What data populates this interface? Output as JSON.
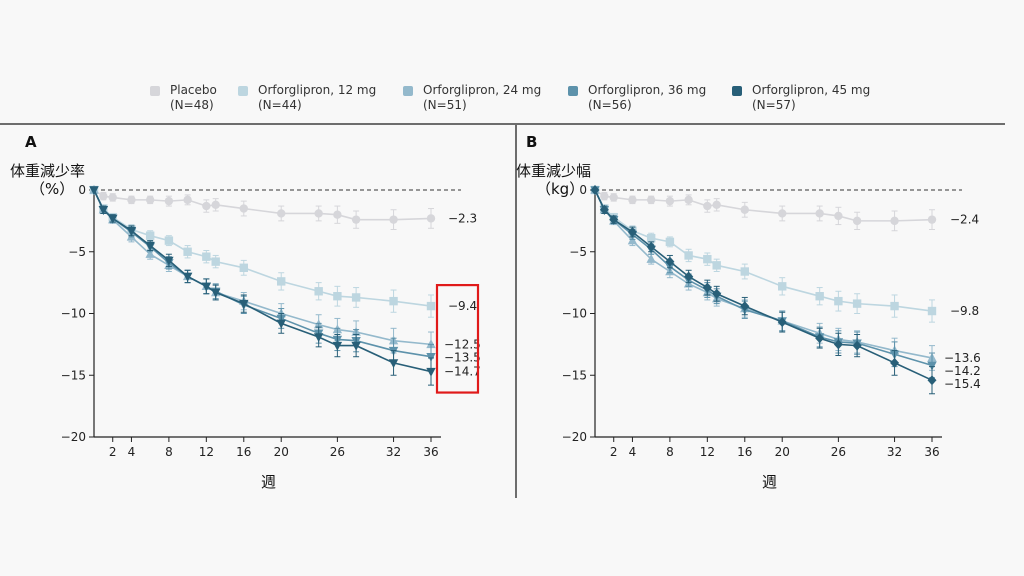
{
  "legend": [
    {
      "name": "Placebo",
      "n": "(N=48)",
      "color": "#d6d6da"
    },
    {
      "name": "Orforglipron, 12 mg",
      "n": "(N=44)",
      "color": "#bdd6e0"
    },
    {
      "name": "Orforglipron, 24 mg",
      "n": "(N=51)",
      "color": "#94b9cc"
    },
    {
      "name": "Orforglipron, 36 mg",
      "n": "(N=56)",
      "color": "#5d92ab"
    },
    {
      "name": "Orforglipron, 45 mg",
      "n": "(N=57)",
      "color": "#285f78"
    }
  ],
  "highlight": {
    "color": "#e01a1a"
  },
  "chart_data": [
    {
      "type": "line",
      "panel": "A",
      "ylabel": [
        "体重減少率",
        "（%）"
      ],
      "xlabel": "週",
      "x_ticks": [
        2,
        4,
        8,
        12,
        16,
        20,
        26,
        32,
        36
      ],
      "y_ticks": [
        0,
        -5,
        -10,
        -15,
        -20
      ],
      "xlim": [
        0,
        37
      ],
      "ylim": [
        -20,
        0
      ],
      "reference_line": 0,
      "end_labels": [
        "−2.3",
        "−9.4",
        "−12.5",
        "−13.5",
        "−14.7"
      ],
      "highlighted_end_labels": [
        "−9.4",
        "−12.5",
        "−13.5",
        "−14.7"
      ],
      "series": [
        {
          "name": "Placebo",
          "marker": "circle",
          "color": "#d6d6da",
          "x": [
            0,
            1,
            2,
            4,
            6,
            8,
            10,
            12,
            13,
            16,
            20,
            24,
            26,
            28,
            32,
            36
          ],
          "y": [
            0,
            -0.5,
            -0.6,
            -0.8,
            -0.8,
            -0.9,
            -0.8,
            -1.3,
            -1.2,
            -1.5,
            -1.9,
            -1.9,
            -2.0,
            -2.4,
            -2.4,
            -2.3
          ],
          "err": [
            0,
            0.3,
            0.3,
            0.3,
            0.3,
            0.4,
            0.4,
            0.5,
            0.5,
            0.6,
            0.6,
            0.6,
            0.7,
            0.7,
            0.8,
            0.8
          ]
        },
        {
          "name": "Orforglipron, 12 mg",
          "marker": "square",
          "color": "#bdd6e0",
          "x": [
            0,
            1,
            2,
            4,
            6,
            8,
            10,
            12,
            13,
            16,
            20,
            24,
            26,
            28,
            32,
            36
          ],
          "y": [
            0,
            -1.5,
            -2.2,
            -3.2,
            -3.7,
            -4.1,
            -5.0,
            -5.4,
            -5.8,
            -6.3,
            -7.4,
            -8.2,
            -8.6,
            -8.7,
            -9.0,
            -9.4
          ],
          "err": [
            0,
            0.3,
            0.3,
            0.4,
            0.4,
            0.4,
            0.5,
            0.5,
            0.5,
            0.6,
            0.7,
            0.7,
            0.8,
            0.8,
            0.9,
            0.9
          ]
        },
        {
          "name": "Orforglipron, 24 mg",
          "marker": "triangle-up",
          "color": "#94b9cc",
          "x": [
            0,
            1,
            2,
            4,
            6,
            8,
            10,
            12,
            13,
            16,
            20,
            24,
            26,
            28,
            32,
            36
          ],
          "y": [
            0,
            -1.6,
            -2.4,
            -3.8,
            -5.2,
            -6.1,
            -7.0,
            -7.8,
            -8.3,
            -9.0,
            -10.0,
            -10.9,
            -11.3,
            -11.5,
            -12.2,
            -12.5
          ],
          "err": [
            0,
            0.3,
            0.3,
            0.4,
            0.4,
            0.5,
            0.5,
            0.6,
            0.6,
            0.7,
            0.8,
            0.8,
            0.9,
            0.9,
            1.0,
            1.0
          ]
        },
        {
          "name": "Orforglipron, 36 mg",
          "marker": "triangle-down",
          "color": "#5d92ab",
          "x": [
            0,
            1,
            2,
            4,
            6,
            8,
            10,
            12,
            13,
            16,
            20,
            24,
            26,
            28,
            32,
            36
          ],
          "y": [
            0,
            -1.6,
            -2.3,
            -3.4,
            -4.6,
            -5.9,
            -7.0,
            -7.8,
            -8.2,
            -9.3,
            -10.4,
            -11.6,
            -12.1,
            -12.2,
            -13.0,
            -13.5
          ],
          "err": [
            0,
            0.3,
            0.3,
            0.4,
            0.4,
            0.5,
            0.5,
            0.6,
            0.6,
            0.7,
            0.8,
            0.8,
            0.9,
            0.9,
            1.0,
            1.0
          ]
        },
        {
          "name": "Orforglipron, 45 mg",
          "marker": "triangle-down",
          "color": "#285f78",
          "x": [
            0,
            1,
            2,
            4,
            6,
            8,
            10,
            12,
            13,
            16,
            20,
            24,
            26,
            28,
            32,
            36
          ],
          "y": [
            0,
            -1.6,
            -2.3,
            -3.3,
            -4.5,
            -5.7,
            -7.0,
            -7.8,
            -8.3,
            -9.2,
            -10.8,
            -11.9,
            -12.6,
            -12.6,
            -14.0,
            -14.7
          ],
          "err": [
            0,
            0.3,
            0.3,
            0.4,
            0.4,
            0.5,
            0.5,
            0.6,
            0.6,
            0.7,
            0.8,
            0.8,
            0.9,
            0.9,
            1.0,
            1.1
          ]
        }
      ]
    },
    {
      "type": "line",
      "panel": "B",
      "ylabel": [
        "体重減少幅",
        "（kg）"
      ],
      "xlabel": "週",
      "x_ticks": [
        2,
        4,
        8,
        12,
        16,
        20,
        26,
        32,
        36
      ],
      "y_ticks": [
        0,
        -5,
        -10,
        -15,
        -20
      ],
      "xlim": [
        0,
        37
      ],
      "ylim": [
        -20,
        0
      ],
      "reference_line": 0,
      "end_labels": [
        "−2.4",
        "−9.8",
        "−13.6",
        "−14.2",
        "−15.4"
      ],
      "series": [
        {
          "name": "Placebo",
          "marker": "circle",
          "color": "#d6d6da",
          "x": [
            0,
            1,
            2,
            4,
            6,
            8,
            10,
            12,
            13,
            16,
            20,
            24,
            26,
            28,
            32,
            36
          ],
          "y": [
            0,
            -0.5,
            -0.6,
            -0.8,
            -0.8,
            -0.9,
            -0.8,
            -1.3,
            -1.2,
            -1.6,
            -1.9,
            -1.9,
            -2.1,
            -2.5,
            -2.5,
            -2.4
          ],
          "err": [
            0,
            0.3,
            0.3,
            0.3,
            0.3,
            0.4,
            0.4,
            0.5,
            0.5,
            0.6,
            0.6,
            0.6,
            0.7,
            0.7,
            0.8,
            0.8
          ]
        },
        {
          "name": "Orforglipron, 12 mg",
          "marker": "square",
          "color": "#bdd6e0",
          "x": [
            0,
            1,
            2,
            4,
            6,
            8,
            10,
            12,
            13,
            16,
            20,
            24,
            26,
            28,
            32,
            36
          ],
          "y": [
            0,
            -1.5,
            -2.2,
            -3.3,
            -3.9,
            -4.2,
            -5.3,
            -5.6,
            -6.1,
            -6.6,
            -7.8,
            -8.6,
            -9.0,
            -9.2,
            -9.4,
            -9.8
          ],
          "err": [
            0,
            0.3,
            0.3,
            0.4,
            0.4,
            0.4,
            0.5,
            0.5,
            0.5,
            0.6,
            0.7,
            0.7,
            0.8,
            0.8,
            0.9,
            0.9
          ]
        },
        {
          "name": "Orforglipron, 24 mg",
          "marker": "triangle-up",
          "color": "#94b9cc",
          "x": [
            0,
            1,
            2,
            4,
            6,
            8,
            10,
            12,
            13,
            16,
            20,
            24,
            26,
            28,
            32,
            36
          ],
          "y": [
            0,
            -1.6,
            -2.5,
            -4.1,
            -5.6,
            -6.6,
            -7.6,
            -8.3,
            -8.8,
            -9.6,
            -10.6,
            -11.6,
            -12.1,
            -12.3,
            -13.0,
            -13.6
          ],
          "err": [
            0,
            0.3,
            0.3,
            0.4,
            0.4,
            0.5,
            0.5,
            0.6,
            0.6,
            0.7,
            0.8,
            0.8,
            0.9,
            0.9,
            1.0,
            1.0
          ]
        },
        {
          "name": "Orforglipron, 36 mg",
          "marker": "triangle-down",
          "color": "#5d92ab",
          "x": [
            0,
            1,
            2,
            4,
            6,
            8,
            10,
            12,
            13,
            16,
            20,
            24,
            26,
            28,
            32,
            36
          ],
          "y": [
            0,
            -1.6,
            -2.4,
            -3.6,
            -4.8,
            -6.2,
            -7.3,
            -8.1,
            -8.6,
            -9.7,
            -10.6,
            -11.9,
            -12.3,
            -12.4,
            -13.3,
            -14.2
          ],
          "err": [
            0,
            0.3,
            0.3,
            0.4,
            0.4,
            0.5,
            0.5,
            0.6,
            0.6,
            0.7,
            0.8,
            0.8,
            0.9,
            0.9,
            1.0,
            1.0
          ]
        },
        {
          "name": "Orforglipron, 45 mg",
          "marker": "diamond",
          "color": "#285f78",
          "x": [
            0,
            1,
            2,
            4,
            6,
            8,
            10,
            12,
            13,
            16,
            20,
            24,
            26,
            28,
            32,
            36
          ],
          "y": [
            0,
            -1.6,
            -2.4,
            -3.4,
            -4.6,
            -5.8,
            -7.0,
            -7.9,
            -8.4,
            -9.4,
            -10.7,
            -12.0,
            -12.5,
            -12.6,
            -14.0,
            -15.4
          ],
          "err": [
            0,
            0.3,
            0.3,
            0.4,
            0.4,
            0.5,
            0.5,
            0.6,
            0.6,
            0.7,
            0.8,
            0.8,
            0.9,
            0.9,
            1.0,
            1.1
          ]
        }
      ]
    }
  ]
}
